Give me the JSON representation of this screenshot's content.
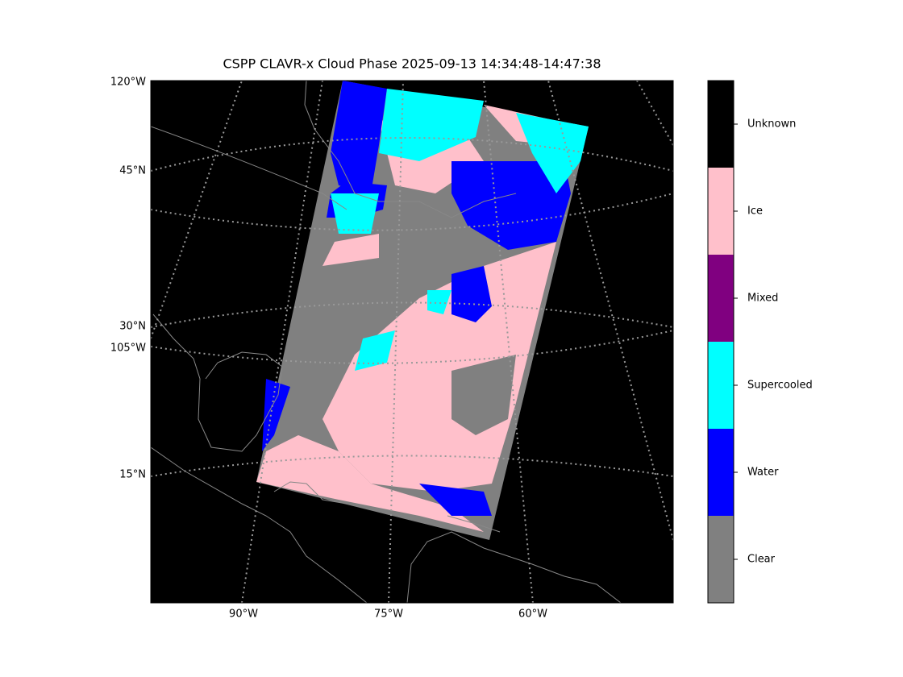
{
  "title": "CSPP CLAVR-x Cloud Phase 2025-09-13 14:34:48-14:47:38",
  "map": {
    "left_labels": [
      "120°W",
      "45°N",
      "30°N",
      "105°W",
      "15°N"
    ],
    "bottom_labels": [
      "90°W",
      "75°W",
      "60°W"
    ]
  },
  "colorbar": {
    "classes": [
      {
        "label": "Clear",
        "color": "#808080"
      },
      {
        "label": "Water",
        "color": "#0000ff"
      },
      {
        "label": "Supercooled",
        "color": "#00ffff"
      },
      {
        "label": "Mixed",
        "color": "#800080"
      },
      {
        "label": "Ice",
        "color": "#ffc0cb"
      },
      {
        "label": "Unknown",
        "color": "#000000"
      }
    ]
  }
}
